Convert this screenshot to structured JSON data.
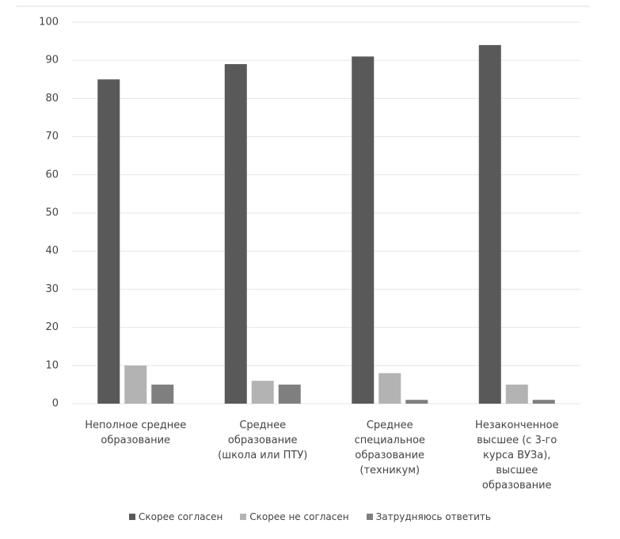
{
  "chart_data": {
    "type": "bar",
    "categories": [
      "Неполное среднее образование",
      "Среднее образование (школа или ПТУ)",
      "Среднее специальное образование (техникум)",
      "Незаконченное высшее (с 3-го курса ВУЗа), высшее образование"
    ],
    "series": [
      {
        "name": "Скорее согласен",
        "color": "#595959",
        "values": [
          85,
          89,
          91,
          94
        ]
      },
      {
        "name": "Скорее не согласен",
        "color": "#b3b3b3",
        "values": [
          10,
          6,
          8,
          5
        ]
      },
      {
        "name": "Затрудняюсь ответить",
        "color": "#7f7f7f",
        "values": [
          5,
          5,
          1,
          1
        ]
      }
    ],
    "ylim": [
      0,
      100
    ],
    "yticks": [
      0,
      10,
      20,
      30,
      40,
      50,
      60,
      70,
      80,
      90,
      100
    ],
    "grid": true
  }
}
